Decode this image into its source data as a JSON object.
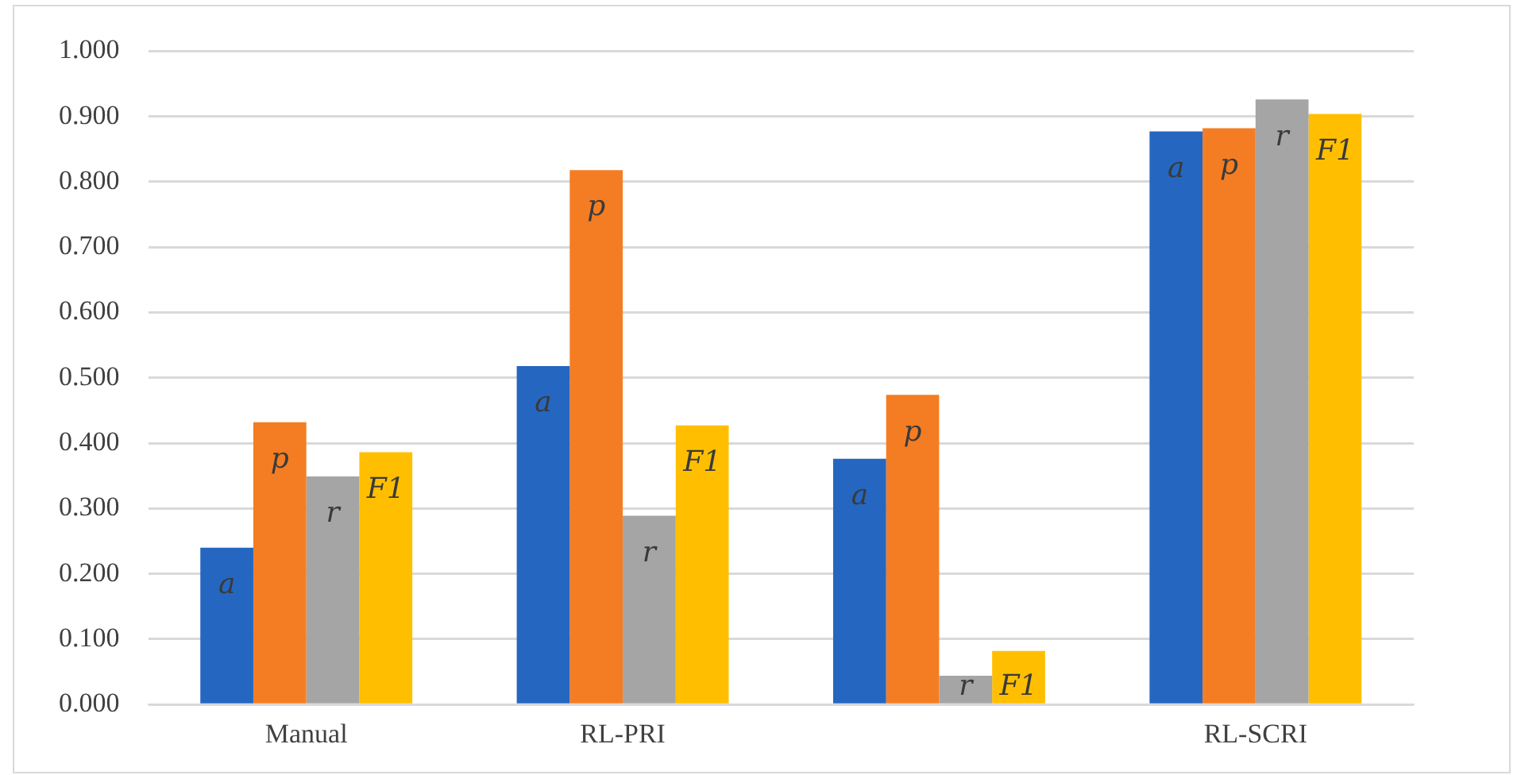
{
  "chart_data": {
    "type": "bar",
    "categories": [
      "Manual",
      "RL-PRI",
      null,
      "RL-SCRI"
    ],
    "series": [
      {
        "name": "a",
        "color": "#2567c0",
        "values": [
          0.24,
          0.518,
          0.376,
          0.877
        ]
      },
      {
        "name": "p",
        "color": "#f47d23",
        "values": [
          0.432,
          0.818,
          0.474,
          0.882
        ]
      },
      {
        "name": "r",
        "color": "#a5a5a5",
        "values": [
          0.349,
          0.289,
          0.044,
          0.926
        ]
      },
      {
        "name": "F1",
        "color": "#ffbf00",
        "values": [
          0.386,
          0.427,
          0.082,
          0.904
        ]
      }
    ],
    "ylim": [
      0,
      1
    ],
    "yticks": [
      {
        "value": 0,
        "label": "0.000"
      },
      {
        "value": 0.1,
        "label": "0.100"
      },
      {
        "value": 0.2,
        "label": "0.200"
      },
      {
        "value": 0.3,
        "label": "0.300"
      },
      {
        "value": 0.4,
        "label": "0.400"
      },
      {
        "value": 0.5,
        "label": "0.500"
      },
      {
        "value": 0.6,
        "label": "0.600"
      },
      {
        "value": 0.7,
        "label": "0.700"
      },
      {
        "value": 0.8,
        "label": "0.800"
      },
      {
        "value": 0.9,
        "label": "0.900"
      },
      {
        "value": 1,
        "label": "1.000"
      }
    ],
    "grid": "y",
    "legend": false
  }
}
